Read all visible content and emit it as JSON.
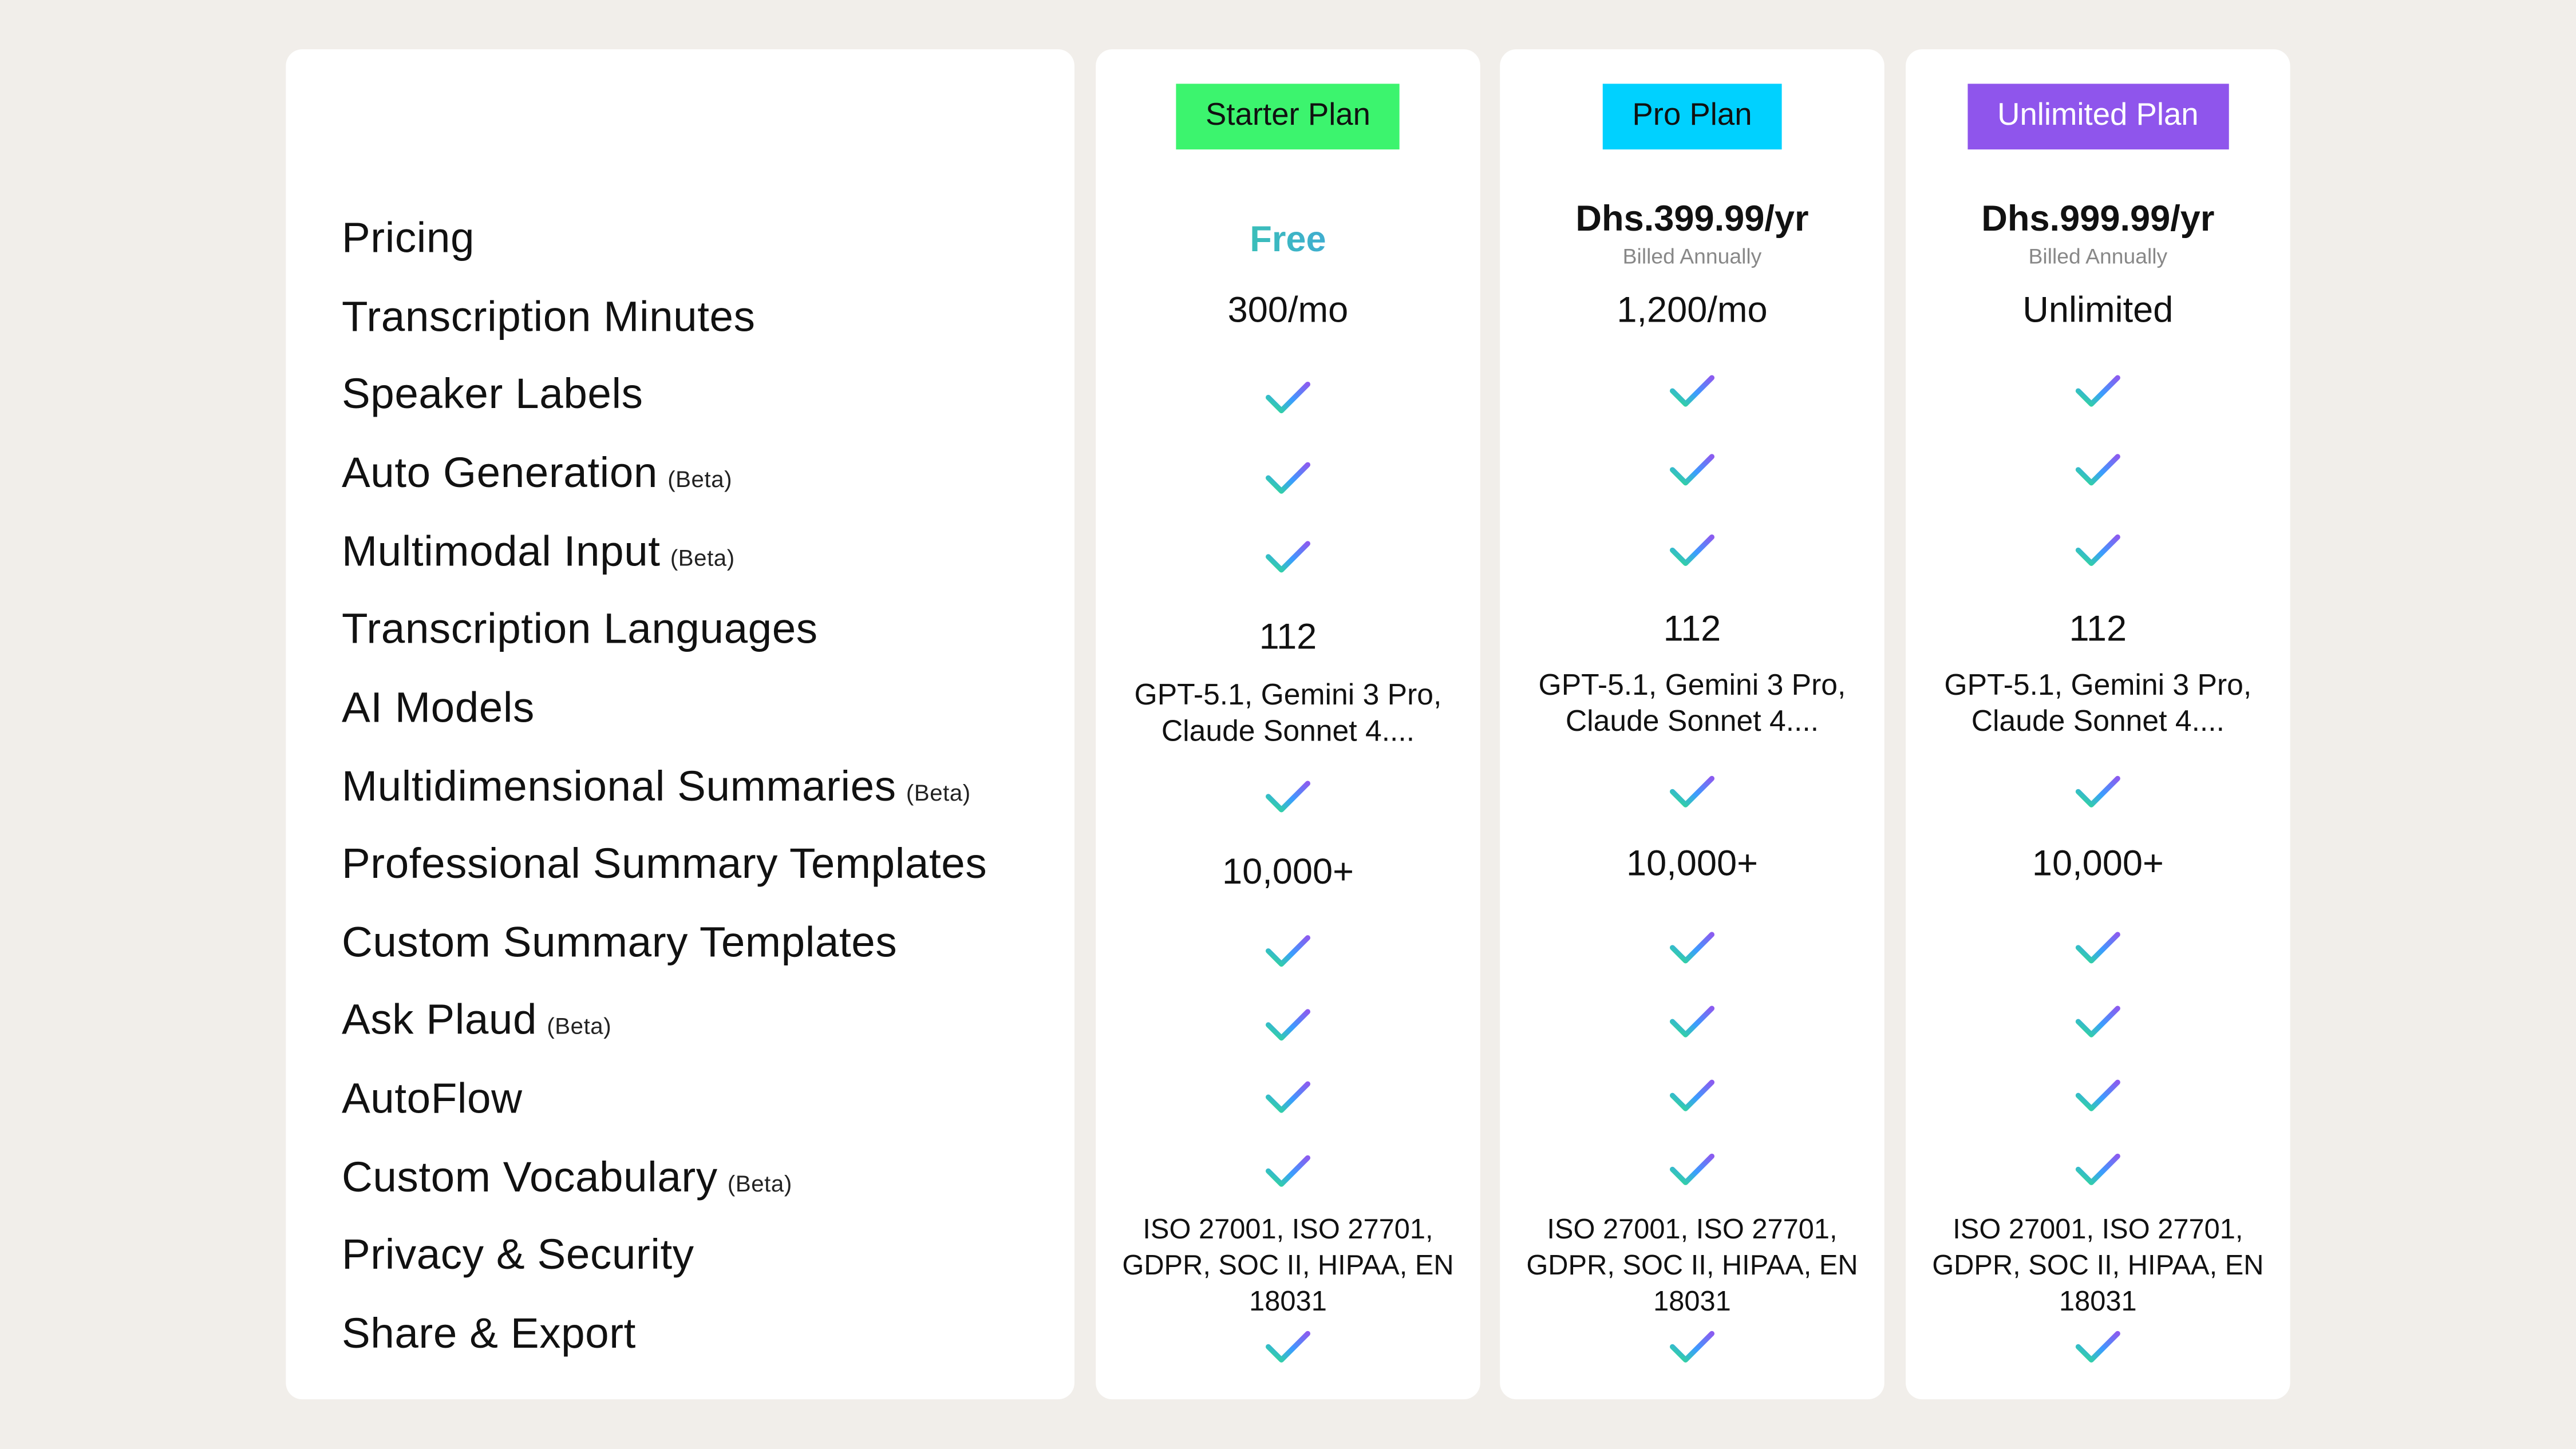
{
  "features": [
    {
      "label": "Pricing"
    },
    {
      "label": "Transcription Minutes"
    },
    {
      "label": "Speaker Labels"
    },
    {
      "label": "Auto Generation",
      "beta": "(Beta)"
    },
    {
      "label": "Multimodal Input",
      "beta": "(Beta)"
    },
    {
      "label": "Transcription Languages"
    },
    {
      "label": "AI Models"
    },
    {
      "label": "Multidimensional Summaries",
      "beta": "(Beta)"
    },
    {
      "label": "Professional Summary Templates"
    },
    {
      "label": "Custom Summary Templates"
    },
    {
      "label": "Ask Plaud",
      "beta": "(Beta)"
    },
    {
      "label": "AutoFlow"
    },
    {
      "label": "Custom Vocabulary",
      "beta": "(Beta)"
    },
    {
      "label": "Privacy & Security"
    },
    {
      "label": "Share & Export"
    }
  ],
  "plans": [
    {
      "name": "Starter Plan",
      "color": "#3cf46e",
      "text_color": "#111111",
      "cells": [
        {
          "type": "free",
          "value": "Free"
        },
        {
          "type": "text",
          "value": "300/mo"
        },
        {
          "type": "check",
          "icon": "check-icon"
        },
        {
          "type": "check",
          "icon": "check-icon"
        },
        {
          "type": "check",
          "icon": "check-icon"
        },
        {
          "type": "text",
          "value": "112"
        },
        {
          "type": "models",
          "value": "GPT-5.1, Gemini 3 Pro, Claude Sonnet 4...."
        },
        {
          "type": "check",
          "icon": "check-icon"
        },
        {
          "type": "text",
          "value": "10,000+"
        },
        {
          "type": "check",
          "icon": "check-icon"
        },
        {
          "type": "check",
          "icon": "check-icon"
        },
        {
          "type": "check",
          "icon": "check-icon"
        },
        {
          "type": "check",
          "icon": "check-icon"
        },
        {
          "type": "small",
          "value": "ISO 27001, ISO 27701, GDPR, SOC II, HIPAA, EN 18031"
        },
        {
          "type": "check",
          "icon": "check-icon"
        }
      ]
    },
    {
      "name": "Pro Plan",
      "color": "#00d1ff",
      "text_color": "#111111",
      "cells": [
        {
          "type": "price",
          "value": "Dhs.399.99/yr",
          "sub": "Billed Annually"
        },
        {
          "type": "text",
          "value": "1,200/mo"
        },
        {
          "type": "check",
          "icon": "check-icon"
        },
        {
          "type": "check",
          "icon": "check-icon"
        },
        {
          "type": "check",
          "icon": "check-icon"
        },
        {
          "type": "text",
          "value": "112"
        },
        {
          "type": "models",
          "value": "GPT-5.1, Gemini 3 Pro, Claude Sonnet 4...."
        },
        {
          "type": "check",
          "icon": "check-icon"
        },
        {
          "type": "text",
          "value": "10,000+"
        },
        {
          "type": "check",
          "icon": "check-icon"
        },
        {
          "type": "check",
          "icon": "check-icon"
        },
        {
          "type": "check",
          "icon": "check-icon"
        },
        {
          "type": "check",
          "icon": "check-icon"
        },
        {
          "type": "small",
          "value": "ISO 27001, ISO 27701, GDPR, SOC II,  HIPAA, EN 18031"
        },
        {
          "type": "check",
          "icon": "check-icon"
        }
      ]
    },
    {
      "name": "Unlimited Plan",
      "color": "#8f55ec",
      "text_color": "#ffffff",
      "cells": [
        {
          "type": "price",
          "value": "Dhs.999.99/yr",
          "sub": "Billed Annually"
        },
        {
          "type": "text",
          "value": "Unlimited"
        },
        {
          "type": "check",
          "icon": "check-icon"
        },
        {
          "type": "check",
          "icon": "check-icon"
        },
        {
          "type": "check",
          "icon": "check-icon"
        },
        {
          "type": "text",
          "value": "112"
        },
        {
          "type": "models",
          "value": "GPT-5.1, Gemini 3 Pro, Claude Sonnet 4...."
        },
        {
          "type": "check",
          "icon": "check-icon"
        },
        {
          "type": "text",
          "value": "10,000+"
        },
        {
          "type": "check",
          "icon": "check-icon"
        },
        {
          "type": "check",
          "icon": "check-icon"
        },
        {
          "type": "check",
          "icon": "check-icon"
        },
        {
          "type": "check",
          "icon": "check-icon"
        },
        {
          "type": "small",
          "value": "ISO 27001, ISO 27701, GDPR, SOC II, HIPAA, EN 18031"
        },
        {
          "type": "check",
          "icon": "check-icon"
        }
      ]
    }
  ]
}
